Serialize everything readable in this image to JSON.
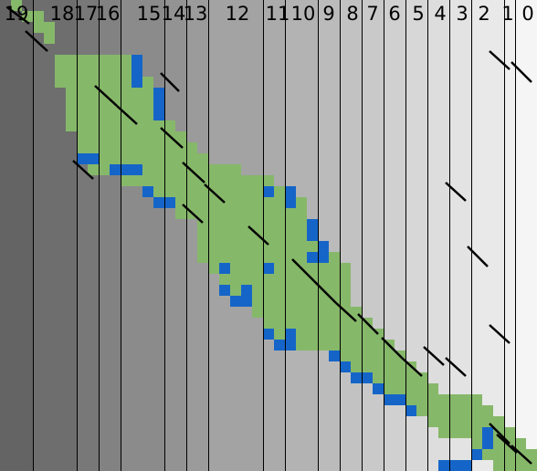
{
  "columns": [
    {
      "label": "19",
      "shade": "#646464"
    },
    {
      "label": "18",
      "shade": "#6e6e6e"
    },
    {
      "label": "17",
      "shade": "#787878"
    },
    {
      "label": "16",
      "shade": "#828282"
    },
    {
      "label": "15",
      "shade": "#8b8b8b"
    },
    {
      "label": "14",
      "shade": "#939393"
    },
    {
      "label": "13",
      "shade": "#9b9b9b"
    },
    {
      "label": "12",
      "shade": "#a3a3a3"
    },
    {
      "label": "11",
      "shade": "#ababab"
    },
    {
      "label": "10",
      "shade": "#b3b3b3"
    },
    {
      "label": "9",
      "shade": "#bbbbbb"
    },
    {
      "label": "8",
      "shade": "#c2c2c2"
    },
    {
      "label": "7",
      "shade": "#c9c9c9"
    },
    {
      "label": "6",
      "shade": "#d0d0d0"
    },
    {
      "label": "5",
      "shade": "#d7d7d7"
    },
    {
      "label": "4",
      "shade": "#dddddd"
    },
    {
      "label": "3",
      "shade": "#e3e3e3"
    },
    {
      "label": "2",
      "shade": "#e9e9e9"
    },
    {
      "label": "1",
      "shade": "#efefef"
    },
    {
      "label": "0",
      "shade": "#f5f5f5"
    }
  ],
  "colors": {
    "green": "#86b86a",
    "blue": "#1565c8",
    "divider": "#000000",
    "mark": "#000000"
  }
}
